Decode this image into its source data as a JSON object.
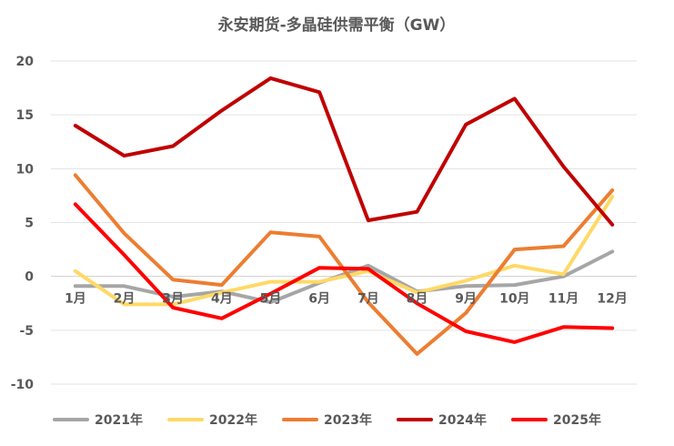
{
  "chart_data": {
    "type": "line",
    "title": "永安期货-多晶硅供需平衡（GW）",
    "xlabel": "",
    "ylabel": "",
    "categories": [
      "1月",
      "2月",
      "3月",
      "4月",
      "5月",
      "6月",
      "7月",
      "8月",
      "9月",
      "10月",
      "11月",
      "12月"
    ],
    "ylim": [
      -10,
      20
    ],
    "yticks": [
      20,
      15,
      10,
      5,
      0,
      -5,
      -10
    ],
    "grid": true,
    "legend_position": "bottom",
    "series": [
      {
        "name": "2021年",
        "color": "#a6a6a6",
        "values": [
          -0.9,
          -0.9,
          -1.9,
          -1.4,
          -2.4,
          -0.6,
          1.0,
          -1.4,
          -0.9,
          -0.8,
          0.0,
          2.3
        ]
      },
      {
        "name": "2022年",
        "color": "#ffd966",
        "values": [
          0.5,
          -2.6,
          -2.6,
          -1.5,
          -0.5,
          -0.5,
          0.5,
          -1.5,
          -0.4,
          1.0,
          0.2,
          7.4
        ]
      },
      {
        "name": "2023年",
        "color": "#ed7d31",
        "values": [
          9.4,
          4.0,
          -0.3,
          -0.8,
          4.1,
          3.7,
          -2.4,
          -7.2,
          -3.4,
          2.5,
          2.8,
          8.0
        ]
      },
      {
        "name": "2024年",
        "color": "#c00000",
        "values": [
          14.0,
          11.2,
          12.1,
          15.4,
          18.4,
          17.1,
          5.2,
          6.0,
          14.1,
          16.5,
          10.2,
          4.8
        ]
      },
      {
        "name": "2025年",
        "color": "#ff0000",
        "values": [
          6.7,
          2.0,
          -2.9,
          -3.9,
          -1.6,
          0.8,
          0.7,
          -2.5,
          -5.1,
          -6.1,
          -4.7,
          -4.8
        ]
      }
    ]
  }
}
